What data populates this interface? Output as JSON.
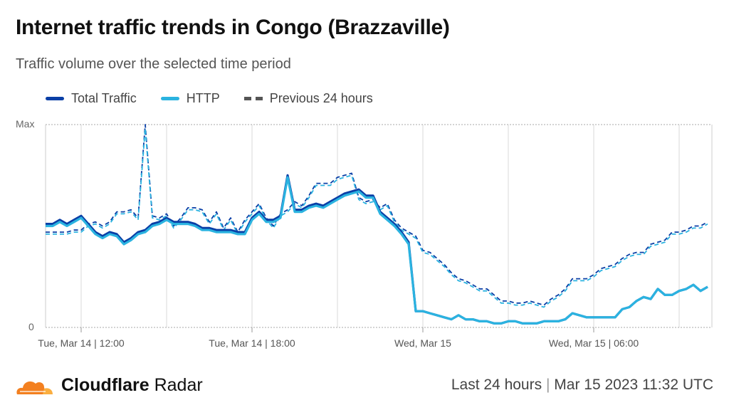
{
  "header": {
    "title": "Internet traffic trends in Congo (Brazzaville)",
    "subtitle": "Traffic volume over the selected time period"
  },
  "footer": {
    "brand_bold": "Cloudflare",
    "brand_rest": "Radar",
    "range": "Last 24 hours",
    "separator": "|",
    "timestamp": "Mar 15 2023 11:32 UTC"
  },
  "colors": {
    "total": "#0a3fa6",
    "http": "#2bb3e0",
    "grid": "#d9d9d9"
  },
  "chart_data": {
    "type": "line",
    "title": "Internet traffic trends in Congo (Brazzaville)",
    "ylabel": "",
    "xlabel": "",
    "ylim": [
      0,
      100
    ],
    "y_tick_labels": [
      "0",
      "Max"
    ],
    "x_tick_labels": [
      "Tue, Mar 14 | 12:00",
      "Tue, Mar 14 | 18:00",
      "Wed, Mar 15",
      "Wed, Mar 15 | 06:00"
    ],
    "x_start": "Mar 14 10:45",
    "interval_minutes": 15,
    "grid": true,
    "legend": [
      "Total Traffic",
      "HTTP",
      "Previous 24 hours"
    ],
    "legend_placement": "top-left",
    "series": [
      {
        "name": "Total Traffic",
        "values": [
          51,
          51,
          53,
          51,
          53,
          55,
          51,
          47,
          45,
          47,
          46,
          42,
          44,
          47,
          48,
          51,
          52,
          54,
          52,
          52,
          52,
          51,
          49,
          49,
          48,
          48,
          48,
          47,
          47,
          54,
          57,
          53,
          53,
          55,
          75,
          58,
          58,
          60,
          61,
          60,
          62,
          64,
          66,
          67,
          68,
          65,
          65,
          57,
          54,
          51,
          47,
          42,
          8,
          8,
          7,
          6,
          5,
          4,
          6,
          4,
          4,
          3,
          3,
          2,
          2,
          3,
          3,
          2,
          2,
          2,
          3,
          3,
          3,
          4,
          7,
          6,
          5,
          5,
          5,
          5,
          5,
          9,
          10,
          13,
          15,
          14,
          19,
          16,
          16,
          18,
          19,
          21,
          18,
          20
        ]
      },
      {
        "name": "HTTP",
        "values": [
          50,
          50,
          52,
          50,
          52,
          54,
          50,
          46,
          44,
          46,
          45,
          41,
          43,
          46,
          47,
          50,
          51,
          53,
          51,
          51,
          51,
          50,
          48,
          48,
          47,
          47,
          47,
          46,
          46,
          53,
          56,
          52,
          52,
          54,
          74,
          57,
          57,
          59,
          60,
          59,
          61,
          63,
          65,
          66,
          67,
          64,
          64,
          56,
          53,
          50,
          46,
          41,
          8,
          8,
          7,
          6,
          5,
          4,
          6,
          4,
          4,
          3,
          3,
          2,
          2,
          3,
          3,
          2,
          2,
          2,
          3,
          3,
          3,
          4,
          7,
          6,
          5,
          5,
          5,
          5,
          5,
          9,
          10,
          13,
          15,
          14,
          19,
          16,
          16,
          18,
          19,
          21,
          18,
          20
        ]
      },
      {
        "name": "Total Traffic (previous 24 hours)",
        "values": [
          47,
          47,
          47,
          47,
          48,
          48,
          51,
          52,
          50,
          52,
          57,
          57,
          58,
          54,
          100,
          55,
          54,
          56,
          50,
          54,
          59,
          59,
          58,
          52,
          57,
          49,
          54,
          47,
          53,
          57,
          61,
          54,
          50,
          56,
          58,
          62,
          60,
          65,
          71,
          71,
          71,
          74,
          75,
          76,
          64,
          62,
          63,
          59,
          61,
          53,
          49,
          47,
          45,
          38,
          37,
          34,
          31,
          27,
          24,
          23,
          21,
          19,
          19,
          16,
          13,
          13,
          12,
          12,
          13,
          12,
          11,
          14,
          16,
          19,
          24,
          24,
          24,
          26,
          29,
          30,
          31,
          34,
          36,
          37,
          37,
          41,
          42,
          43,
          47,
          47,
          48,
          50,
          50,
          52
        ]
      },
      {
        "name": "HTTP (previous 24 hours)",
        "values": [
          46,
          46,
          46,
          46,
          47,
          47,
          50,
          51,
          49,
          51,
          56,
          56,
          57,
          53,
          98,
          54,
          53,
          55,
          49,
          53,
          58,
          58,
          57,
          51,
          56,
          48,
          53,
          46,
          52,
          56,
          60,
          53,
          49,
          55,
          57,
          61,
          59,
          64,
          70,
          70,
          70,
          73,
          74,
          75,
          63,
          61,
          62,
          58,
          60,
          52,
          48,
          46,
          44,
          37,
          36,
          33,
          30,
          26,
          23,
          22,
          20,
          18,
          18,
          15,
          12,
          12,
          11,
          11,
          12,
          11,
          10,
          13,
          15,
          18,
          23,
          23,
          23,
          25,
          28,
          29,
          30,
          33,
          35,
          36,
          36,
          40,
          41,
          42,
          46,
          46,
          47,
          49,
          49,
          51
        ]
      }
    ]
  }
}
